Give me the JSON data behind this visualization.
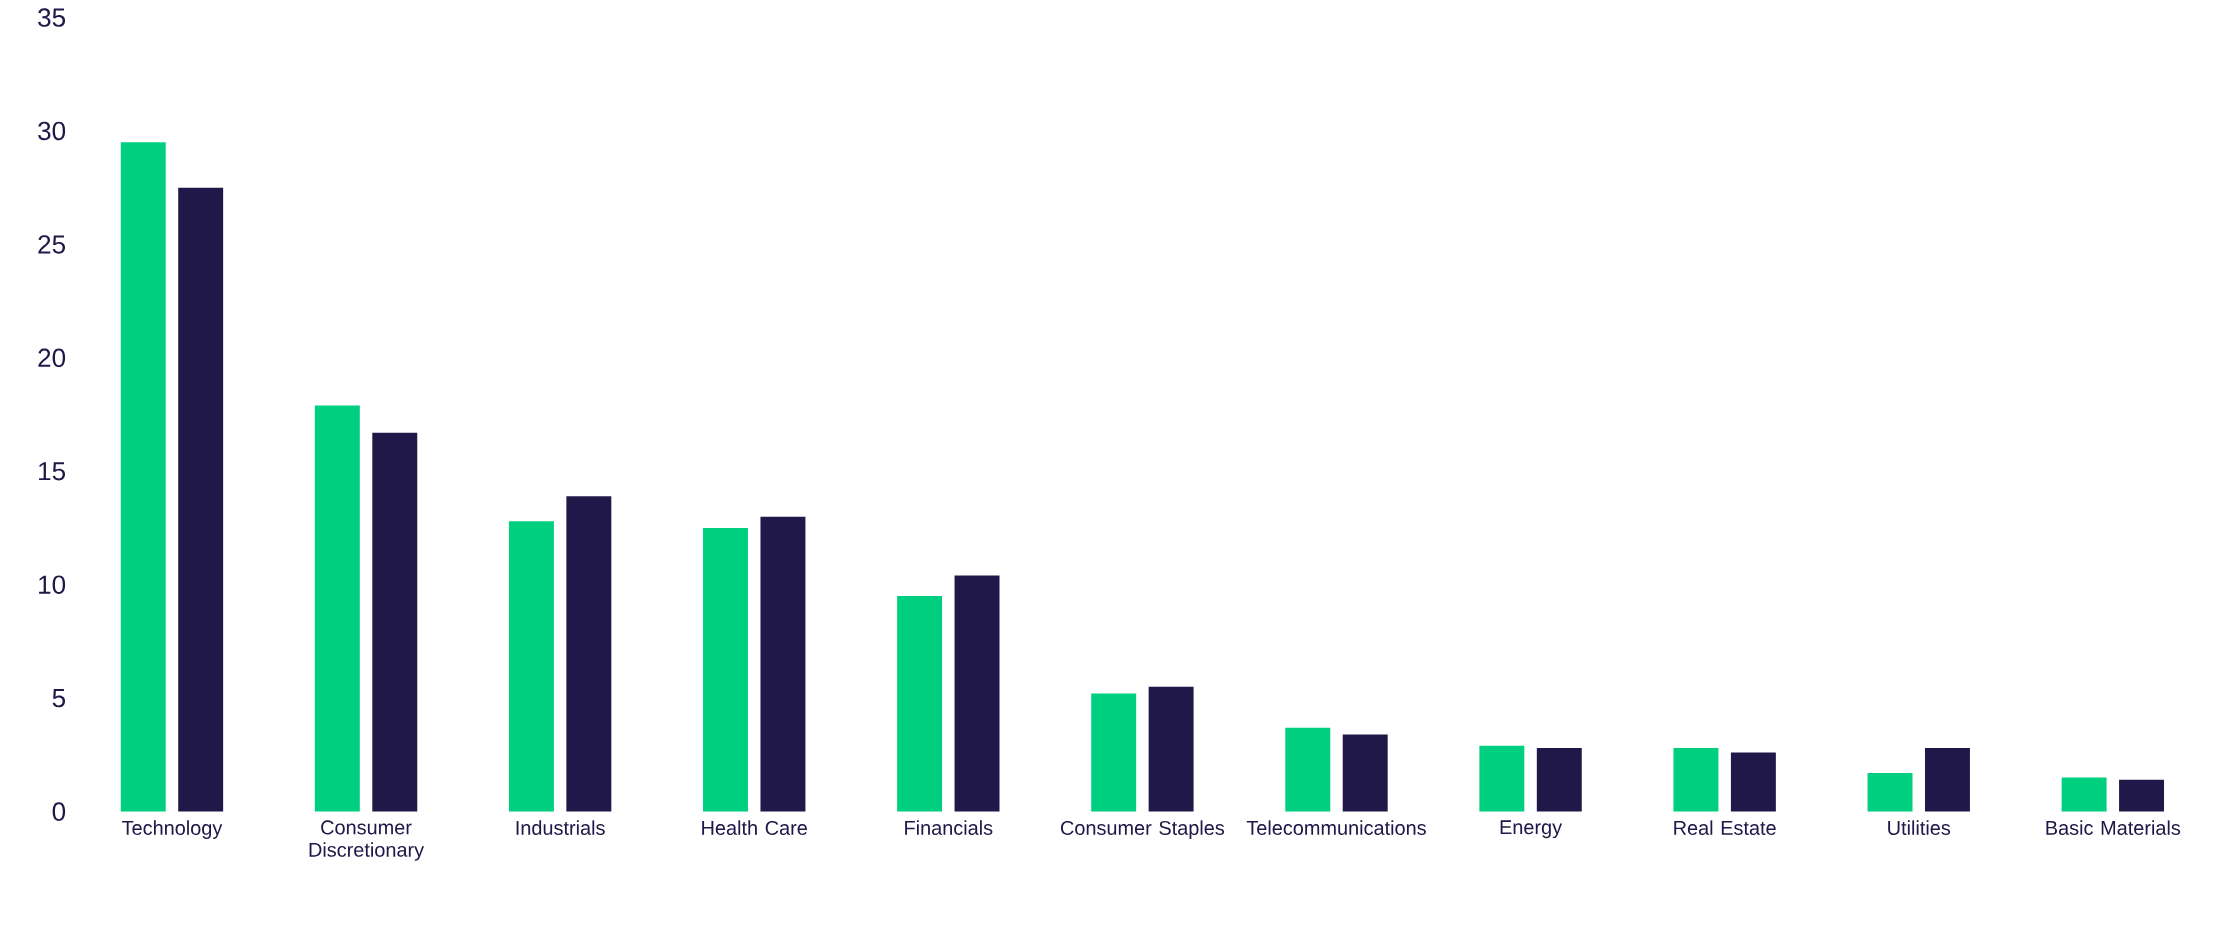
{
  "chart_data": {
    "type": "bar",
    "categories": [
      "Technology",
      "Consumer Discretionary",
      "Industrials",
      "Health Care",
      "Financials",
      "Consumer Staples",
      "Telecommunications",
      "Energy",
      "Real Estate",
      "Utilities",
      "Basic Materials"
    ],
    "series": [
      {
        "color": "#00cf7f",
        "values": [
          29.5,
          17.9,
          12.8,
          12.5,
          9.5,
          5.2,
          3.7,
          2.9,
          2.8,
          1.7,
          1.5
        ]
      },
      {
        "color": "#201848",
        "values": [
          27.5,
          16.7,
          13.9,
          13.0,
          10.4,
          5.5,
          3.4,
          2.8,
          2.6,
          2.8,
          1.4
        ]
      }
    ],
    "ylim": [
      0,
      35
    ],
    "yticks": [
      0,
      5,
      10,
      15,
      20,
      25,
      30,
      35
    ]
  }
}
